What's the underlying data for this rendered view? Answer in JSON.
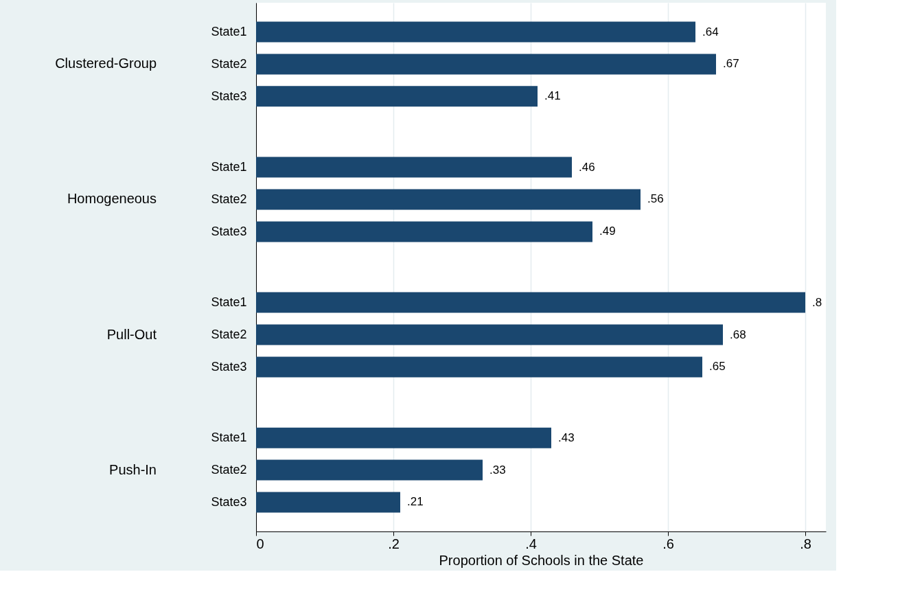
{
  "chart_data": {
    "type": "bar",
    "orientation": "horizontal",
    "xlabel": "Proportion of Schools in the State",
    "categories": [
      "State1",
      "State2",
      "State3",
      "State1",
      "State2",
      "State3",
      "State1",
      "State2",
      "State3",
      "State1",
      "State2",
      "State3"
    ],
    "annotations": [
      "Clustered-Group",
      "Homogeneous",
      "Pull-Out",
      "Push-In"
    ],
    "values": [
      0.64,
      0.67,
      0.41,
      0.46,
      0.56,
      0.49,
      0.8,
      0.68,
      0.65,
      0.43,
      0.33,
      0.21
    ],
    "value_labels": [
      ".64",
      ".67",
      ".41",
      ".46",
      ".56",
      ".49",
      ".8",
      ".68",
      ".65",
      ".43",
      ".33",
      ".21"
    ],
    "color": "#1a476f",
    "xlim": [
      0,
      0.83
    ],
    "xticks": [
      0,
      {
        "value": 0.2,
        "label": ".2"
      },
      {
        "value": 0.4,
        "label": ".4"
      },
      {
        "value": 0.6,
        "label": ".6"
      },
      {
        "value": 0.8,
        "label": ".8"
      }
    ],
    "grid": "x",
    "legend": false
  }
}
